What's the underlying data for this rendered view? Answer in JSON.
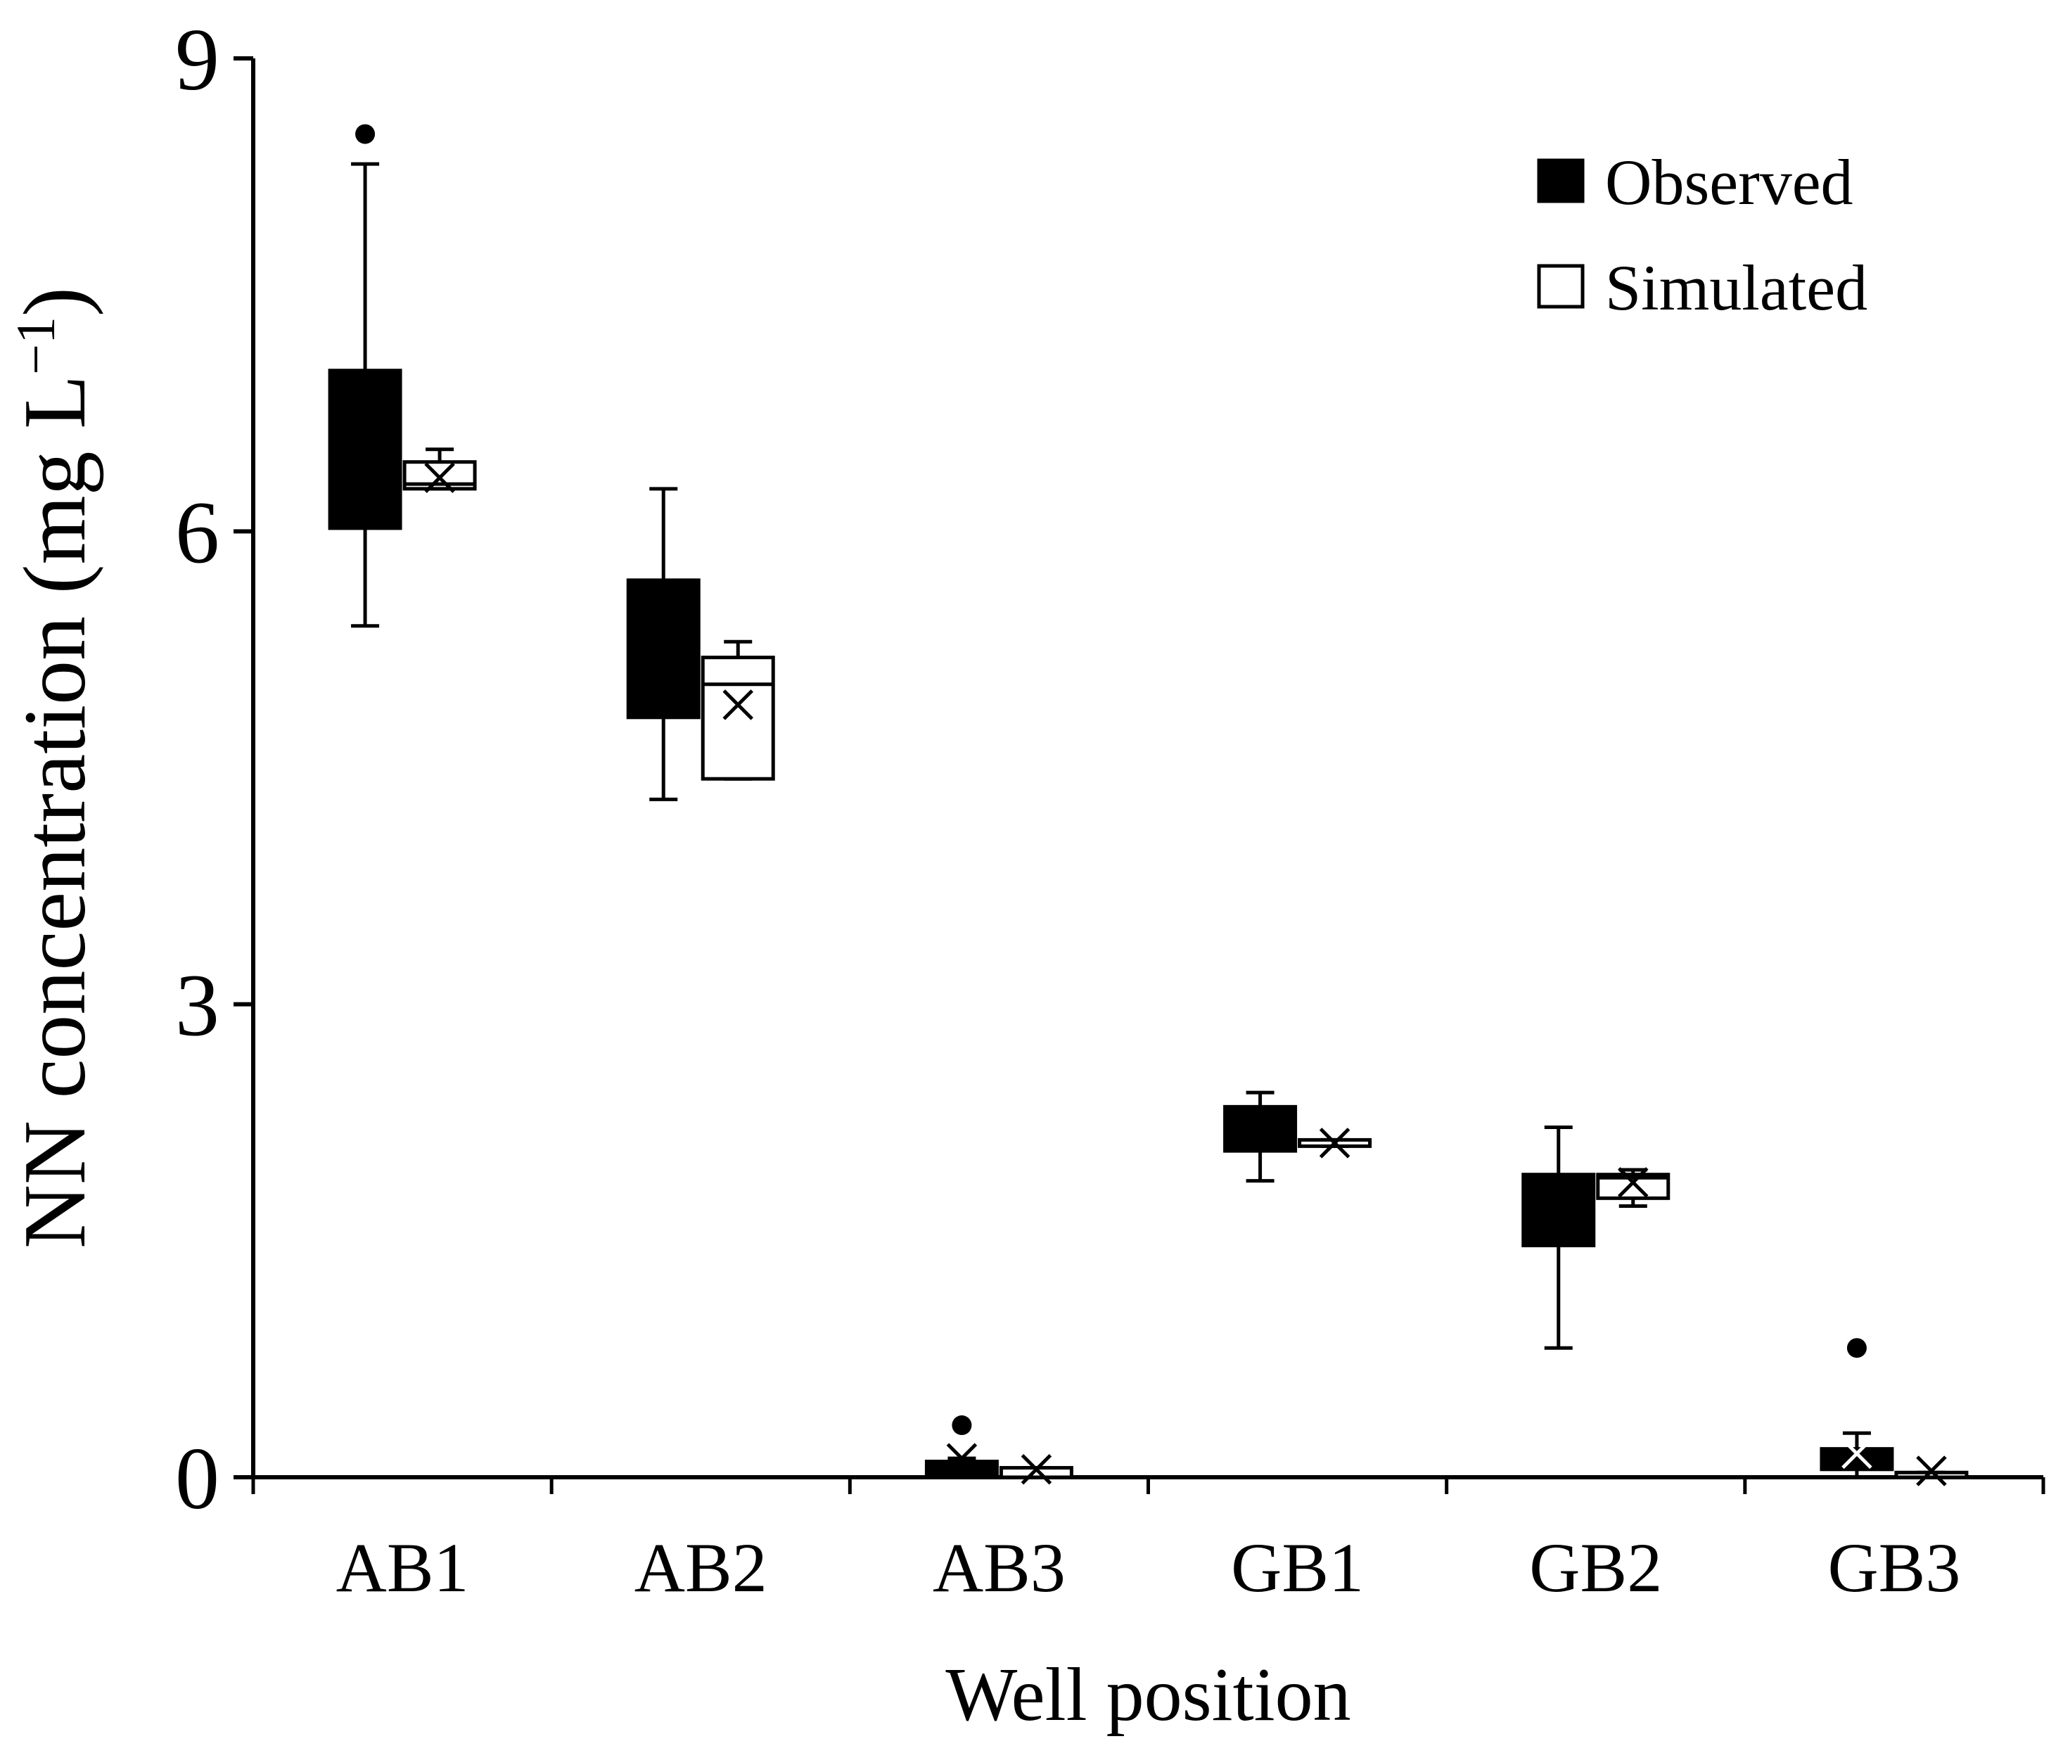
{
  "chart_data": {
    "type": "box",
    "xlabel": "Well position",
    "ylabel_main": "NN concentration (mg L",
    "ylabel_sup": "−1",
    "ylabel_close": ")",
    "ylim": [
      0,
      9
    ],
    "yticks": [
      0,
      3,
      6,
      9
    ],
    "yticklabels": [
      "0",
      "3",
      "6",
      "9"
    ],
    "categories": [
      "AB1",
      "AB2",
      "AB3",
      "GB1",
      "GB2",
      "GB3"
    ],
    "legend": {
      "position": "top-right"
    },
    "series": [
      {
        "name": "Observed",
        "fill": "#000000",
        "boxes": [
          {
            "whisker_low": 5.4,
            "q1": 6.02,
            "q3": 7.02,
            "whisker_high": 8.33,
            "outliers": [
              8.52
            ]
          },
          {
            "whisker_low": 4.3,
            "q1": 4.82,
            "q3": 5.69,
            "whisker_high": 6.27,
            "outliers": []
          },
          {
            "whisker_low": 0.0,
            "q1": 0.0,
            "q3": 0.1,
            "whisker_high": 0.12,
            "outliers": [
              0.33
            ],
            "mean": 0.12
          },
          {
            "whisker_low": 1.88,
            "q1": 2.07,
            "q3": 2.35,
            "whisker_high": 2.44,
            "outliers": []
          },
          {
            "whisker_low": 0.82,
            "q1": 1.47,
            "q3": 1.92,
            "whisker_high": 2.22,
            "outliers": []
          },
          {
            "whisker_low": 0.0,
            "q1": 0.05,
            "q3": 0.18,
            "whisker_high": 0.28,
            "outliers": [
              0.82
            ],
            "mean": 0.15
          }
        ]
      },
      {
        "name": "Simulated",
        "fill": "#ffffff",
        "boxes": [
          {
            "whisker_low": 6.27,
            "q1": 6.27,
            "q3": 6.44,
            "whisker_high": 6.52,
            "median": 6.3,
            "mean": 6.34
          },
          {
            "whisker_low": 4.43,
            "q1": 4.43,
            "q3": 5.2,
            "whisker_high": 5.3,
            "median": 5.03,
            "mean": 4.9
          },
          {
            "whisker_low": 0.0,
            "q1": 0.0,
            "q3": 0.06,
            "whisker_high": 0.06,
            "mean": 0.05
          },
          {
            "whisker_low": 2.1,
            "q1": 2.1,
            "q3": 2.14,
            "whisker_high": 2.14,
            "mean": 2.12
          },
          {
            "whisker_low": 1.72,
            "q1": 1.77,
            "q3": 1.92,
            "whisker_high": 1.95,
            "median": 1.9,
            "mean": 1.87
          },
          {
            "whisker_low": 0.0,
            "q1": 0.0,
            "q3": 0.03,
            "whisker_high": 0.03,
            "mean": 0.04
          }
        ]
      }
    ]
  }
}
